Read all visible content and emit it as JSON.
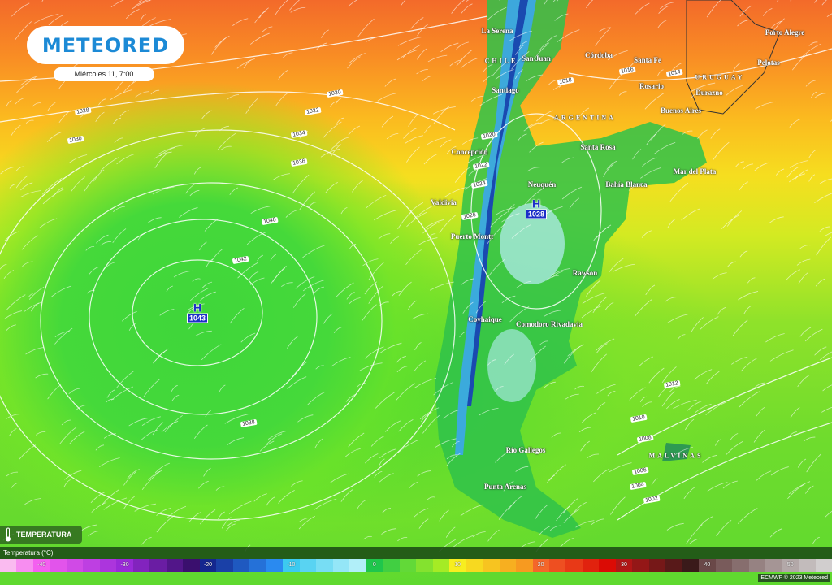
{
  "brand": {
    "logo": "METEORED",
    "date": "Miércoles 11, 7:00"
  },
  "layer": {
    "label": "TEMPERATURA",
    "icon": "thermometer-icon"
  },
  "legend": {
    "title": "Temperatura (°C)",
    "ticks": [
      "-40",
      "-30",
      "-20",
      "-10",
      "0",
      "10",
      "20",
      "30",
      "40",
      "50"
    ],
    "range": [
      -45,
      55
    ],
    "step": 2,
    "color_stops": [
      [
        "-45",
        "#fbd2f0"
      ],
      [
        "-40",
        "#f45ff0"
      ],
      [
        "-30",
        "#9a2ad8"
      ],
      [
        "-22",
        "#3a0f6e"
      ],
      [
        "-20",
        "#14278f"
      ],
      [
        "-12",
        "#2a8af0"
      ],
      [
        "-10",
        "#3ccaf0"
      ],
      [
        "-1",
        "#c0f4fa"
      ],
      [
        "0",
        "#1fc64c"
      ],
      [
        "9",
        "#b6f020"
      ],
      [
        "10",
        "#f7ee20"
      ],
      [
        "19",
        "#f79020"
      ],
      [
        "20",
        "#f4662a"
      ],
      [
        "29",
        "#d80000"
      ],
      [
        "30",
        "#b21616"
      ],
      [
        "38",
        "#3a1a1a"
      ],
      [
        "40",
        "#6a4848"
      ],
      [
        "55",
        "#d8d8d8"
      ]
    ]
  },
  "credit": "ECMWF © 2023 Meteored",
  "pressure_systems": [
    {
      "type": "H",
      "value": "1043"
    },
    {
      "type": "H",
      "value": "1028"
    }
  ],
  "places": [
    "La Serena",
    "CHILE",
    "San Juan",
    "Córdoba",
    "Santa Fe",
    "Rosario",
    "URUGUAY",
    "Durazno",
    "Porto Alegre",
    "Pelotas",
    "Santiago",
    "ARGENTINA",
    "Buenos Aires",
    "Concepción",
    "Santa Rosa",
    "Mar del Plata",
    "Bahía Blanca",
    "Neuquén",
    "Valdivia",
    "Puerto Montt",
    "Rawson",
    "Coyhaique",
    "Comodoro Rivadavia",
    "Río Gallegos",
    "Punta Arenas",
    "MALVINAS"
  ],
  "isobar_labels": [
    "1028",
    "1030",
    "1030",
    "1032",
    "1034",
    "1036",
    "1040",
    "1042",
    "1038",
    "1020",
    "1022",
    "1024",
    "1026",
    "1018",
    "1016",
    "1014",
    "1012",
    "1010",
    "1008",
    "1006",
    "1004",
    "1002"
  ]
}
